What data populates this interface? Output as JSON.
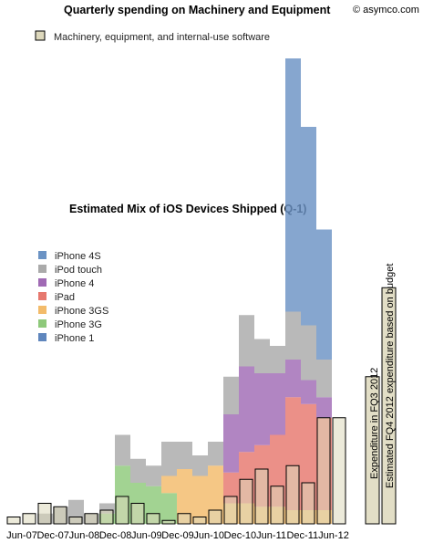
{
  "chart_data": {
    "type": "bar",
    "title": "Quarterly spending on Machinery and Equipment",
    "subtitle": "Estimated Mix of iOS Devices Shipped (Q-1)",
    "credit": "© asymco.com",
    "xlabel": "",
    "ylabel": "",
    "tick_labels": [
      "Jun-07",
      "Dec-07",
      "Jun-08",
      "Dec-08",
      "Jun-09",
      "Dec-09",
      "Jun-10",
      "Dec-10",
      "Jun-11",
      "Dec-11",
      "Jun-12"
    ],
    "categories": [
      "Mar-07",
      "Jun-07",
      "Sep-07",
      "Dec-07",
      "Mar-08",
      "Jun-08",
      "Sep-08",
      "Dec-08",
      "Mar-09",
      "Jun-09",
      "Sep-09",
      "Dec-09",
      "Mar-10",
      "Jun-10",
      "Sep-10",
      "Dec-10",
      "Mar-11",
      "Jun-11",
      "Sep-11",
      "Dec-11",
      "Mar-12",
      "Jun-12"
    ],
    "series": [
      {
        "name": "iPhone 4S",
        "color": "#6b93c4",
        "values": [
          0,
          0,
          0,
          0,
          0,
          0,
          0,
          0,
          0,
          0,
          0,
          0,
          0,
          0,
          0,
          0,
          0,
          0,
          37,
          29,
          19,
          0
        ]
      },
      {
        "name": "iPod touch",
        "color": "#aaaaaa",
        "values": [
          0,
          0,
          1.5,
          2.5,
          3.5,
          1.5,
          1.5,
          4.5,
          3.5,
          3,
          5,
          4,
          3,
          3.5,
          5.5,
          7.5,
          5,
          4,
          7,
          8,
          5.5,
          0
        ]
      },
      {
        "name": "iPhone 4",
        "color": "#a06ab4",
        "values": [
          0,
          0,
          0,
          0,
          0,
          0,
          0,
          0,
          0,
          0,
          0,
          0,
          0,
          0,
          8.5,
          12.5,
          10.5,
          9,
          5.5,
          3.5,
          3,
          0
        ]
      },
      {
        "name": "iPad",
        "color": "#e6786e",
        "values": [
          0,
          0,
          0,
          0,
          0,
          0,
          0,
          0,
          0,
          0,
          0,
          0,
          0,
          0,
          4.5,
          7.5,
          9,
          10.5,
          16.5,
          15.5,
          13.5,
          0
        ]
      },
      {
        "name": "iPhone 3GS",
        "color": "#f3bb6a",
        "values": [
          0,
          0,
          0,
          0,
          0,
          0,
          0,
          0,
          0,
          0,
          2.5,
          8,
          7,
          8.5,
          3,
          3,
          2.5,
          2.5,
          2,
          2,
          2,
          0
        ]
      },
      {
        "name": "iPhone 3G",
        "color": "#8ec97a",
        "values": [
          0,
          0,
          0,
          0,
          0,
          0,
          1.5,
          8.5,
          6,
          5.5,
          4.5,
          0,
          0,
          0,
          0,
          0,
          0,
          0,
          0,
          0,
          0,
          0
        ]
      },
      {
        "name": "iPhone 1",
        "color": "#5f86bd",
        "values": [
          0,
          0,
          0,
          0,
          0,
          0,
          0,
          0,
          0,
          0,
          0,
          0,
          0,
          0,
          0,
          0,
          0,
          0,
          0,
          0,
          0,
          0
        ]
      }
    ],
    "overlay_series": {
      "name": "Machinery, equipment, and internal-use software",
      "color": "#ddd8bc",
      "values": [
        1,
        1.5,
        3,
        2.5,
        1,
        1.5,
        2,
        4,
        3,
        1.5,
        0.5,
        1.5,
        1,
        2,
        4,
        6.5,
        8,
        5.5,
        8.5,
        6,
        15.5,
        15.5
      ],
      "budget_values": [
        21.5,
        34.5
      ],
      "annotations": [
        "Expenditure in FQ3 2012",
        "Estimated FQ4 2012 expenditure based on budget"
      ]
    },
    "legend_position": "left",
    "grid": false
  }
}
